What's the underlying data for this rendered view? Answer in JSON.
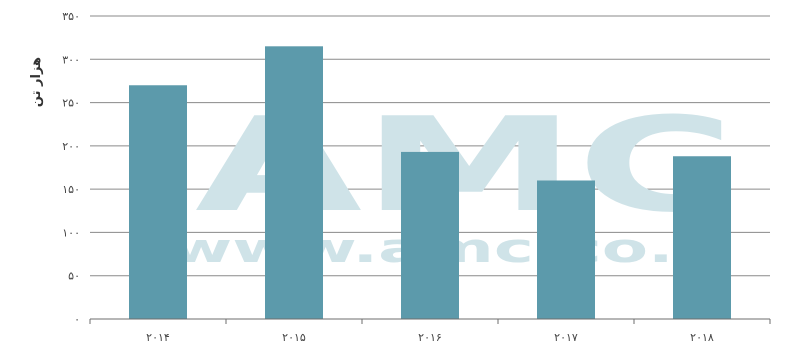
{
  "chart_data": {
    "type": "bar",
    "categories": [
      "۲۰۱۴",
      "۲۰۱۵",
      "۲۰۱۶",
      "۲۰۱۷",
      "۲۰۱۸"
    ],
    "values": [
      270,
      315,
      193,
      160,
      188
    ],
    "title": "",
    "xlabel": "",
    "ylabel": "هزار تن",
    "ylim": [
      0,
      350
    ],
    "yticks": [
      0,
      50,
      100,
      150,
      200,
      250,
      300,
      350
    ],
    "ytick_labels": [
      "۰",
      "۵۰",
      "۱۰۰",
      "۱۵۰",
      "۲۰۰",
      "۲۵۰",
      "۳۰۰",
      "۳۵۰"
    ],
    "grid": true,
    "legend": "none",
    "bar_color": "#5c9aab"
  },
  "watermark": {
    "logo": "AMC",
    "url": "www.amc-co.ir"
  }
}
